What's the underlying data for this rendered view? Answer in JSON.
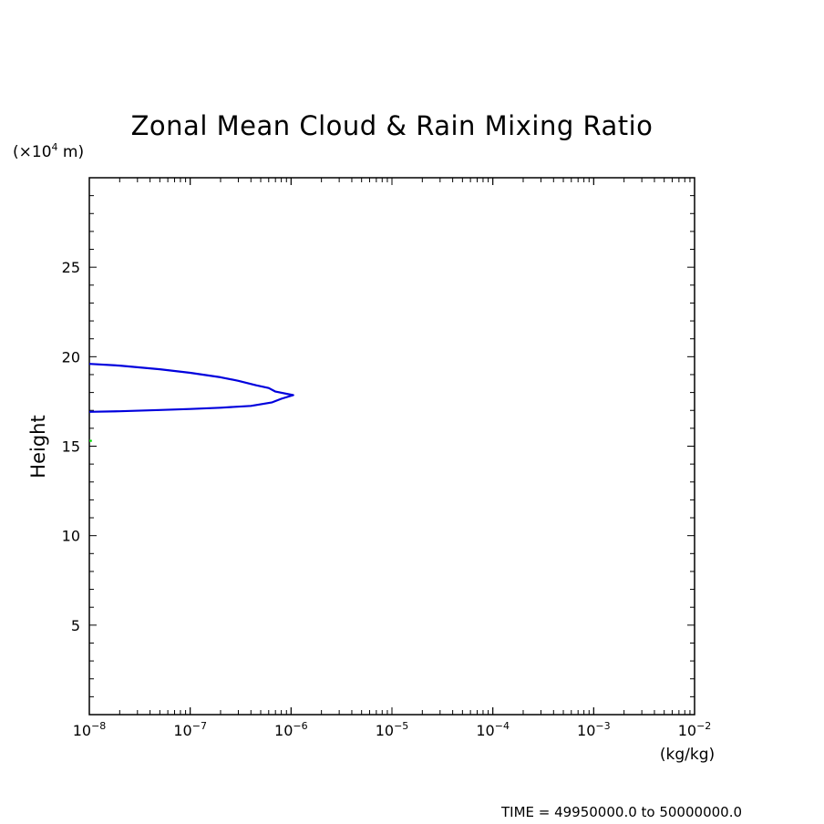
{
  "chart_data": {
    "type": "line",
    "title": "Zonal Mean Cloud & Rain Mixing Ratio",
    "ylabel": "Height",
    "y_units_base": "(×10",
    "y_units_exp": "4",
    "y_units_rest": " m)",
    "x_units": "(kg/kg)",
    "xscale": "log",
    "xlim": [
      1e-08,
      0.01
    ],
    "ylim": [
      0,
      30
    ],
    "x_ticks": [
      {
        "value": 1e-08,
        "base": "10",
        "exp": "−8"
      },
      {
        "value": 1e-07,
        "base": "10",
        "exp": "−7"
      },
      {
        "value": 1e-06,
        "base": "10",
        "exp": "−6"
      },
      {
        "value": 1e-05,
        "base": "10",
        "exp": "−5"
      },
      {
        "value": 0.0001,
        "base": "10",
        "exp": "−4"
      },
      {
        "value": 0.001,
        "base": "10",
        "exp": "−3"
      },
      {
        "value": 0.01,
        "base": "10",
        "exp": "−2"
      }
    ],
    "y_ticks": [
      5,
      10,
      15,
      20,
      25
    ],
    "grid": false,
    "series": [
      {
        "color": "#0000dd",
        "points": [
          [
            1e-08,
            19.6
          ],
          [
            2e-08,
            19.5
          ],
          [
            5e-08,
            19.3
          ],
          [
            1e-07,
            19.1
          ],
          [
            2e-07,
            18.85
          ],
          [
            3e-07,
            18.65
          ],
          [
            4.5e-07,
            18.4
          ],
          [
            6e-07,
            18.25
          ],
          [
            7e-07,
            18.05
          ],
          [
            1.05e-06,
            17.85
          ],
          [
            8e-07,
            17.65
          ],
          [
            6.5e-07,
            17.45
          ],
          [
            4e-07,
            17.25
          ],
          [
            2e-07,
            17.15
          ],
          [
            1e-07,
            17.08
          ],
          [
            5e-08,
            17.02
          ],
          [
            2e-08,
            16.95
          ],
          [
            1e-08,
            16.92
          ]
        ]
      },
      {
        "color": "#00dd00",
        "points": [
          [
            1e-08,
            15.3
          ],
          [
            1.06e-08,
            15.3
          ]
        ]
      }
    ]
  },
  "footer": {
    "time_label": "TIME = 49950000.0 to 50000000.0"
  }
}
